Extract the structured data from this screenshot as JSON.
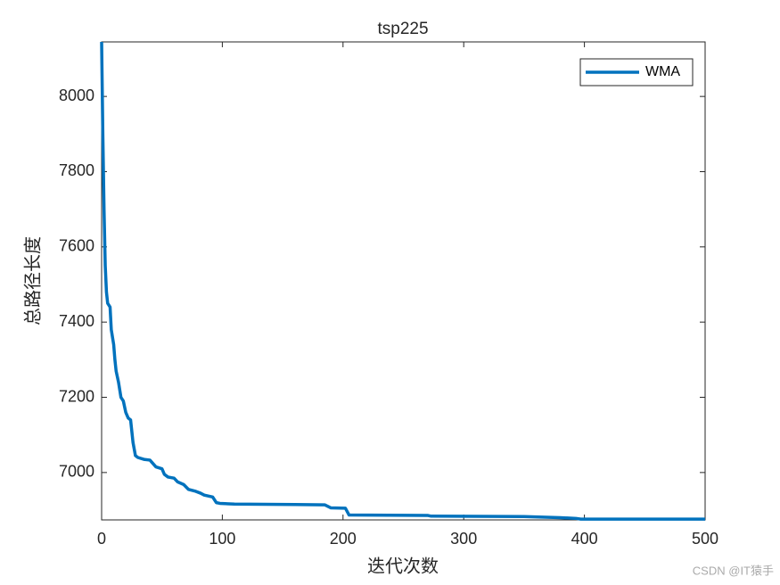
{
  "chart_data": {
    "type": "line",
    "title": "tsp225",
    "xlabel": "迭代次数",
    "ylabel": "总路径长度",
    "x": [
      0,
      1,
      2,
      3,
      4,
      5,
      7,
      8,
      10,
      11,
      12,
      14,
      16,
      18,
      20,
      22,
      24,
      25,
      26,
      28,
      30,
      35,
      40,
      45,
      50,
      52,
      55,
      60,
      63,
      68,
      72,
      78,
      82,
      85,
      92,
      95,
      98,
      110,
      160,
      185,
      190,
      202,
      205,
      270,
      273,
      350,
      380,
      393,
      397,
      500
    ],
    "series": [
      {
        "name": "WMA",
        "color": "#0072bd",
        "values": [
          8145,
          7900,
          7700,
          7550,
          7480,
          7450,
          7440,
          7380,
          7340,
          7300,
          7270,
          7240,
          7200,
          7190,
          7160,
          7145,
          7140,
          7110,
          7080,
          7045,
          7040,
          7035,
          7033,
          7015,
          7010,
          6995,
          6988,
          6985,
          6975,
          6968,
          6955,
          6950,
          6945,
          6940,
          6935,
          6920,
          6918,
          6916,
          6915,
          6914,
          6906,
          6905,
          6887,
          6886,
          6884,
          6883,
          6880,
          6878,
          6876,
          6876
        ]
      }
    ],
    "xlim": [
      0,
      500
    ],
    "xticks": [
      0,
      100,
      200,
      300,
      400,
      500
    ],
    "ylim": [
      6874,
      8145
    ],
    "yticks": [
      7000,
      7200,
      7400,
      7600,
      7800,
      8000
    ],
    "grid": false,
    "legend": "upper right"
  },
  "watermark": "CSDN @IT猿手"
}
